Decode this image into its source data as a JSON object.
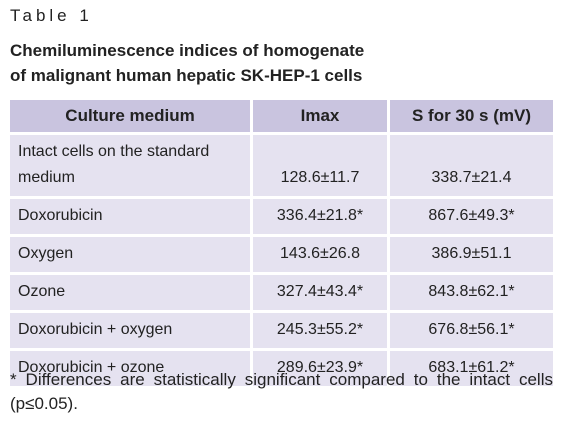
{
  "label": "Table 1",
  "title": {
    "lines": [
      "Chemiluminescence indices of homogenate",
      "of malignant human hepatic SK-HEP-1 cells"
    ]
  },
  "table": {
    "header": [
      "Culture medium",
      "Imax",
      "S for 30 s (mV)"
    ],
    "rows": [
      [
        "Intact cells on the standard medium",
        "128.6±11.7",
        "338.7±21.4"
      ],
      [
        "Doxorubicin",
        "336.4±21.8*",
        "867.6±49.3*"
      ],
      [
        "Oxygen",
        "143.6±26.8",
        "386.9±51.1"
      ],
      [
        "Ozone",
        "327.4±43.4*",
        "843.8±62.1*"
      ],
      [
        "Doxorubicin + oxygen",
        "245.3±55.2*",
        "676.8±56.1*"
      ],
      [
        "Doxorubicin + ozone",
        "289.6±23.9*",
        "683.1±61.2*"
      ]
    ]
  },
  "footnote": "* Differences are statistically significant compared to the intact cells (p≤0.05)."
}
